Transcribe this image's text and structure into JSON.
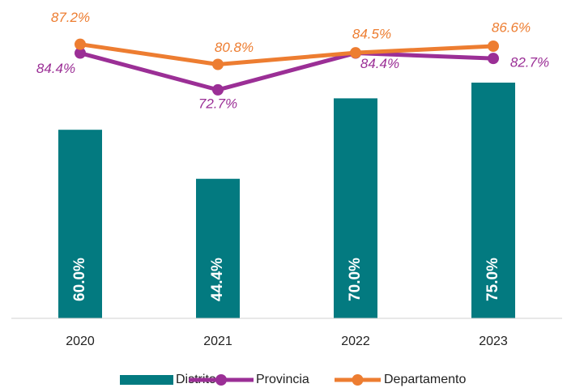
{
  "chart_data": {
    "type": "combo",
    "categories": [
      "2020",
      "2021",
      "2022",
      "2023"
    ],
    "ylim": [
      0,
      100
    ],
    "series": [
      {
        "name": "Distrito",
        "type": "bar",
        "color": "#037a80",
        "values": [
          60.0,
          44.4,
          70.0,
          75.0
        ],
        "value_labels": [
          "60.0%",
          "44.4%",
          "70.0%",
          "75.0%"
        ]
      },
      {
        "name": "Provincia",
        "type": "line",
        "color": "#9b2f96",
        "values": [
          84.4,
          72.7,
          84.4,
          82.7
        ],
        "value_labels": [
          "84.4%",
          "72.7%",
          "84.4%",
          "82.7%"
        ]
      },
      {
        "name": "Departamento",
        "type": "line",
        "color": "#ed7d31",
        "values": [
          87.2,
          80.8,
          84.5,
          86.6
        ],
        "value_labels": [
          "87.2%",
          "80.8%",
          "84.5%",
          "86.6%"
        ]
      }
    ],
    "legend": "bottom"
  }
}
